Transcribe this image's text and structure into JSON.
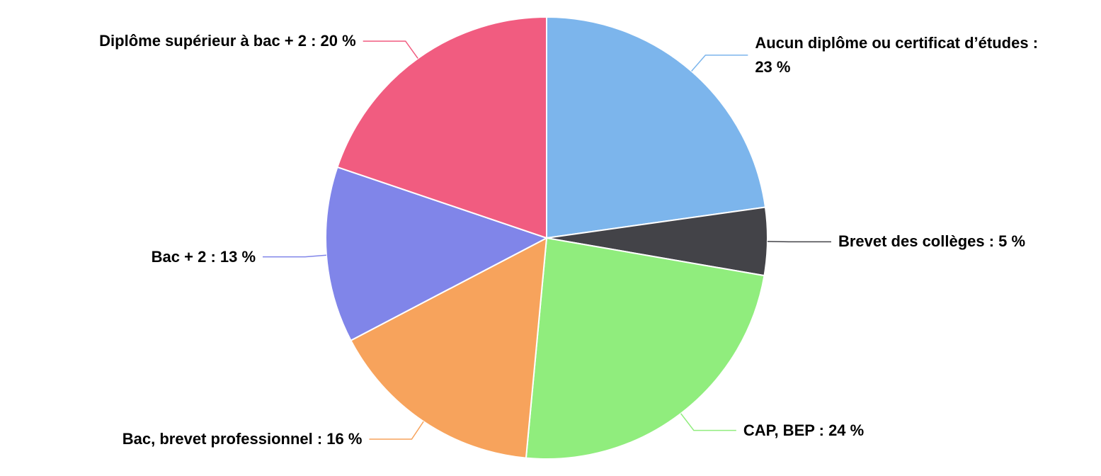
{
  "chart_data": {
    "type": "pie",
    "values": [
      23,
      5,
      24,
      16,
      13,
      20
    ],
    "value_labels": [
      "Aucun diplôme ou certificat d’études : 23 %",
      "Brevet des collèges : 5 %",
      "CAP, BEP : 24 %",
      "Bac, brevet professionnel : 16 %",
      "Bac + 2 : 13 %",
      "Diplôme supérieur à bac + 2 : 20 %"
    ],
    "colors": [
      "#7cb5ec",
      "#434348",
      "#90ed7d",
      "#f7a35c",
      "#8085e9",
      "#f15c80"
    ]
  }
}
